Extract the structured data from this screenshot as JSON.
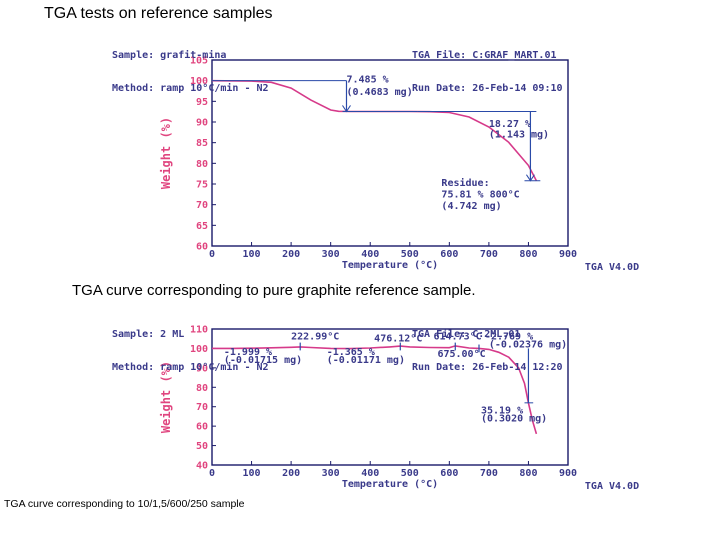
{
  "slide_title": "TGA tests on reference samples",
  "caption_1": "TGA curve corresponding to pure graphite reference sample.",
  "caption_2": "TGA curve corresponding to 10/1,5/600/250 sample",
  "colors": {
    "curve": "#d63a8a",
    "axis": "#1a1a6a",
    "text": "#3a3a8a",
    "ylabel": "#e0457f"
  },
  "chart_data": [
    {
      "type": "line",
      "header": {
        "sample": "Sample: grafit-mina",
        "method": "Method: ramp 10°C/min - N2",
        "file": "TGA File: C:GRAF_MART.01",
        "run_date": "Run Date: 26-Feb-14 09:10"
      },
      "xlabel": "Temperature (°C)",
      "ylabel": "Weight (%)",
      "xlim": [
        0,
        900
      ],
      "ylim": [
        60,
        105
      ],
      "xticks": [
        "0",
        "100",
        "200",
        "300",
        "400",
        "500",
        "600",
        "700",
        "800",
        "900"
      ],
      "yticks": [
        "60",
        "65",
        "70",
        "75",
        "80",
        "85",
        "90",
        "95",
        "100",
        "105"
      ],
      "version": "TGA V4.0D",
      "x": [
        0,
        100,
        150,
        200,
        250,
        300,
        320,
        350,
        400,
        450,
        500,
        550,
        600,
        650,
        700,
        750,
        800,
        820
      ],
      "y": [
        100,
        99.9,
        99.6,
        98.2,
        95.3,
        92.9,
        92.6,
        92.55,
        92.55,
        92.55,
        92.55,
        92.5,
        92.3,
        91.2,
        88.8,
        85.1,
        79.5,
        75.8
      ],
      "annotations": [
        {
          "label": "loss-1-percent",
          "text": "7.485 %",
          "x": 340,
          "y": 99.5
        },
        {
          "label": "loss-1-mg",
          "text": "(0.4683 mg)",
          "x": 340,
          "y": 96.5
        },
        {
          "label": "loss-2-percent",
          "text": "18.27 %",
          "x": 700,
          "y": 88.8
        },
        {
          "label": "loss-2-mg",
          "text": "(1.143 mg)",
          "x": 700,
          "y": 86.2
        },
        {
          "label": "residue-title",
          "text": "Residue:",
          "x": 580,
          "y": 74.5
        },
        {
          "label": "residue-percent",
          "text": "75.81 % 800°C",
          "x": 580,
          "y": 71.7
        },
        {
          "label": "residue-mg",
          "text": "(4.742 mg)",
          "x": 580,
          "y": 68.9
        }
      ]
    },
    {
      "type": "line",
      "header": {
        "sample": "Sample: 2 ML",
        "method": "Method: ramp 10°C/min - N2",
        "file": "TGA File: C:2ML.01",
        "run_date": "Run Date: 26-Feb-14 12:20"
      },
      "xlabel": "Temperature (°C)",
      "ylabel": "Weight (%)",
      "xlim": [
        0,
        900
      ],
      "ylim": [
        40,
        110
      ],
      "xticks": [
        "0",
        "100",
        "200",
        "300",
        "400",
        "500",
        "600",
        "700",
        "800",
        "900"
      ],
      "yticks": [
        "40",
        "50",
        "60",
        "70",
        "80",
        "90",
        "100",
        "110"
      ],
      "version": "TGA V4.0D",
      "x": [
        0,
        50,
        100,
        150,
        200,
        223,
        250,
        300,
        350,
        400,
        450,
        476,
        500,
        550,
        600,
        615,
        650,
        675,
        700,
        725,
        750,
        775,
        790,
        800,
        810,
        820
      ],
      "y": [
        100,
        100,
        100.1,
        100.3,
        100.6,
        100.8,
        100.5,
        100.0,
        99.9,
        100.2,
        100.8,
        101.2,
        100.8,
        100.5,
        100.4,
        101.3,
        100.2,
        100.0,
        99.5,
        98.0,
        95.5,
        90.0,
        82.0,
        72.0,
        63.0,
        56.0
      ],
      "annotations": [
        {
          "label": "peak-1-temp",
          "text": "222.99°C",
          "x": 200,
          "y": 104.5
        },
        {
          "label": "peak-2-temp",
          "text": "476.12°C",
          "x": 410,
          "y": 103.5
        },
        {
          "label": "peak-3-temp",
          "text": "614.73°C",
          "x": 560,
          "y": 104.5
        },
        {
          "label": "loss-3-percent",
          "text": "-2.769 %",
          "x": 690,
          "y": 104.5
        },
        {
          "label": "loss-3-mg",
          "text": "(-0.02376 mg)",
          "x": 700,
          "y": 100.5
        },
        {
          "label": "point-675",
          "text": "675.00°C",
          "x": 570,
          "y": 95.5
        },
        {
          "label": "loss-1-percent",
          "text": "-1.999 %",
          "x": 30,
          "y": 96.5
        },
        {
          "label": "loss-1-mg",
          "text": "(-0.01715 mg)",
          "x": 30,
          "y": 92.5
        },
        {
          "label": "loss-2-percent",
          "text": "-1.365 %",
          "x": 290,
          "y": 96.5
        },
        {
          "label": "loss-2-mg",
          "text": "(-0.01171 mg)",
          "x": 290,
          "y": 92.5
        },
        {
          "label": "residue-percent",
          "text": "35.19 %",
          "x": 680,
          "y": 66.5
        },
        {
          "label": "residue-mg",
          "text": "(0.3020 mg)",
          "x": 680,
          "y": 62.5
        }
      ]
    }
  ]
}
